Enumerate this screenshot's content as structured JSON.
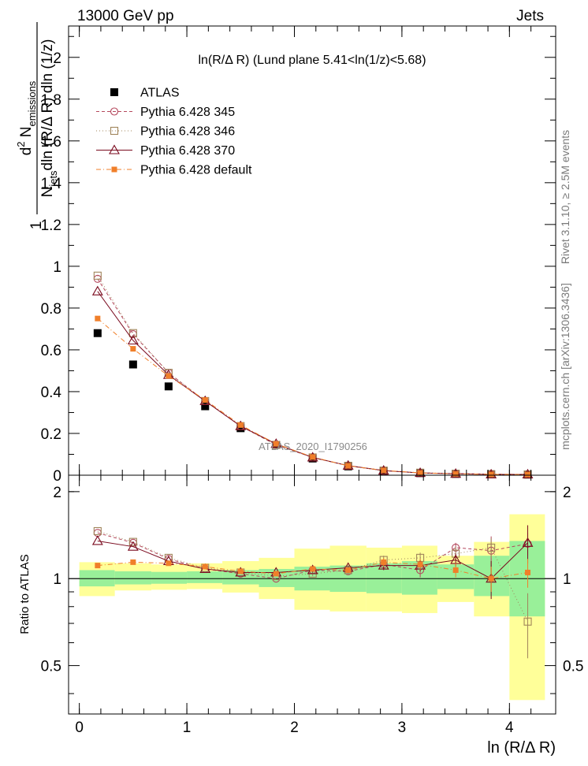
{
  "header": {
    "energy": "13000 GeV pp",
    "process": "Jets",
    "rivet": "Rivet 3.1.10, ≥ 2.5M events",
    "mcplots": "mcplots.cern.ch [arXiv:1306.3436]",
    "analysis": "ATLAS_2020_I1790256"
  },
  "chart_data": [
    {
      "type": "scatter",
      "title": "ln(R/Δ R) (Lund plane 5.41<ln(1/z)<5.68)",
      "xlabel": "ln (R/Δ R)",
      "ylabel": "1/N_jets d²N_emissions / dln(R/Δ R) dln(1/z)",
      "ylabel_parts": {
        "one": "1",
        "N": "N",
        "jets": "jets",
        "dln_rest": "dln (R/Δ R) dln (1/z)",
        "d2": "d",
        "sup2": "2",
        "Nsym": " N",
        "emissions": "emissions"
      },
      "xlim": [
        -0.1,
        4.43
      ],
      "ylim": [
        0,
        2.15
      ],
      "yticks": [
        "0",
        "0.2",
        "0.4",
        "0.6",
        "0.8",
        "1",
        "1.2",
        "1.4",
        "1.6",
        "1.8",
        "2"
      ],
      "ytick_values": [
        0,
        0.2,
        0.4,
        0.6,
        0.8,
        1.0,
        1.2,
        1.4,
        1.6,
        1.8,
        2.0
      ],
      "legend_position": "top-left",
      "x": [
        0.17,
        0.5,
        0.83,
        1.17,
        1.5,
        1.83,
        2.17,
        2.5,
        2.83,
        3.17,
        3.5,
        3.83,
        4.17
      ],
      "series": [
        {
          "name": "ATLAS",
          "color": "#000000",
          "values": [
            0.68,
            0.53,
            0.425,
            0.33,
            0.225,
            0.145,
            0.08,
            0.042,
            0.02,
            0.01,
            0.006,
            0.004,
            0.003
          ]
        },
        {
          "name": "Pythia 6.428 345",
          "color": "#b5485d",
          "values": [
            0.94,
            0.675,
            0.49,
            0.355,
            0.235,
            0.145,
            0.085,
            0.045,
            0.022,
            0.011,
            0.008,
            0.005,
            0.004
          ]
        },
        {
          "name": "Pythia 6.428 346",
          "color": "#a0855b",
          "values": [
            0.955,
            0.68,
            0.49,
            0.355,
            0.235,
            0.145,
            0.085,
            0.045,
            0.022,
            0.012,
            0.007,
            0.005,
            0.003
          ]
        },
        {
          "name": "Pythia 6.428 370",
          "color": "#7a0a1e",
          "values": [
            0.88,
            0.645,
            0.48,
            0.355,
            0.235,
            0.15,
            0.085,
            0.046,
            0.022,
            0.011,
            0.007,
            0.004,
            0.004
          ]
        },
        {
          "name": "Pythia 6.428 default",
          "color": "#f07f2a",
          "values": [
            0.75,
            0.605,
            0.475,
            0.36,
            0.24,
            0.15,
            0.087,
            0.045,
            0.023,
            0.011,
            0.0065,
            0.004,
            0.0032
          ]
        }
      ]
    },
    {
      "type": "scatter",
      "ylabel": "Ratio to ATLAS",
      "xlabel": "ln (R/Δ R)",
      "xlim": [
        -0.1,
        4.43
      ],
      "ylim": [
        0.34,
        2.28
      ],
      "xticks": [
        "0",
        "1",
        "2",
        "3",
        "4"
      ],
      "xtick_values": [
        0,
        1,
        2,
        3,
        4
      ],
      "yticks": [
        "0.5",
        "1",
        "2"
      ],
      "ytick_values": [
        0.5,
        1,
        2
      ],
      "bin_edges": [
        0.0,
        0.33,
        0.67,
        1.0,
        1.33,
        1.67,
        2.0,
        2.33,
        2.67,
        3.0,
        3.33,
        3.67,
        4.0,
        4.33
      ],
      "bands": {
        "inner_color": "#99f099",
        "outer_color": "#ffff99",
        "inner_low": [
          0.94,
          0.955,
          0.96,
          0.965,
          0.955,
          0.935,
          0.91,
          0.9,
          0.89,
          0.88,
          0.92,
          0.87,
          0.74
        ],
        "inner_high": [
          1.07,
          1.06,
          1.055,
          1.06,
          1.07,
          1.08,
          1.1,
          1.11,
          1.13,
          1.15,
          1.12,
          1.2,
          1.35
        ],
        "outer_low": [
          0.87,
          0.91,
          0.915,
          0.92,
          0.895,
          0.85,
          0.78,
          0.77,
          0.77,
          0.76,
          0.83,
          0.74,
          0.38
        ],
        "outer_high": [
          1.14,
          1.13,
          1.12,
          1.13,
          1.15,
          1.18,
          1.27,
          1.3,
          1.28,
          1.3,
          1.2,
          1.34,
          1.67
        ]
      },
      "series": [
        {
          "name": "Pythia 6.428 345",
          "color": "#b5485d",
          "values": [
            1.44,
            1.33,
            1.17,
            1.08,
            1.04,
            1.0,
            1.07,
            1.06,
            1.12,
            1.07,
            1.28,
            1.25,
            1.32
          ],
          "err": [
            0.01,
            0.01,
            0.01,
            0.01,
            0.01,
            0.01,
            0.02,
            0.02,
            0.04,
            0.06,
            0.05,
            0.15,
            0.12
          ]
        },
        {
          "name": "Pythia 6.428 346",
          "color": "#a0855b",
          "values": [
            1.46,
            1.34,
            1.18,
            1.09,
            1.05,
            1.02,
            1.04,
            1.07,
            1.16,
            1.18,
            1.22,
            1.28,
            0.71
          ],
          "err": [
            0.01,
            0.01,
            0.01,
            0.01,
            0.01,
            0.01,
            0.02,
            0.02,
            0.04,
            0.05,
            0.07,
            0.1,
            0.18
          ]
        },
        {
          "name": "Pythia 6.428 370",
          "color": "#7a0a1e",
          "values": [
            1.35,
            1.29,
            1.15,
            1.08,
            1.05,
            1.05,
            1.07,
            1.09,
            1.11,
            1.11,
            1.16,
            1.0,
            1.33
          ],
          "err": [
            0.01,
            0.01,
            0.01,
            0.01,
            0.01,
            0.01,
            0.02,
            0.02,
            0.04,
            0.05,
            0.06,
            0.15,
            0.2
          ]
        },
        {
          "name": "Pythia 6.428 default",
          "color": "#f07f2a",
          "values": [
            1.11,
            1.14,
            1.13,
            1.1,
            1.06,
            1.04,
            1.08,
            1.07,
            1.14,
            1.12,
            1.07,
            1.0,
            1.05
          ],
          "err": [
            0.01,
            0.01,
            0.01,
            0.01,
            0.01,
            0.01,
            0.02,
            0.02,
            0.04,
            0.05,
            0.06,
            0.1,
            0.12
          ]
        }
      ]
    }
  ]
}
